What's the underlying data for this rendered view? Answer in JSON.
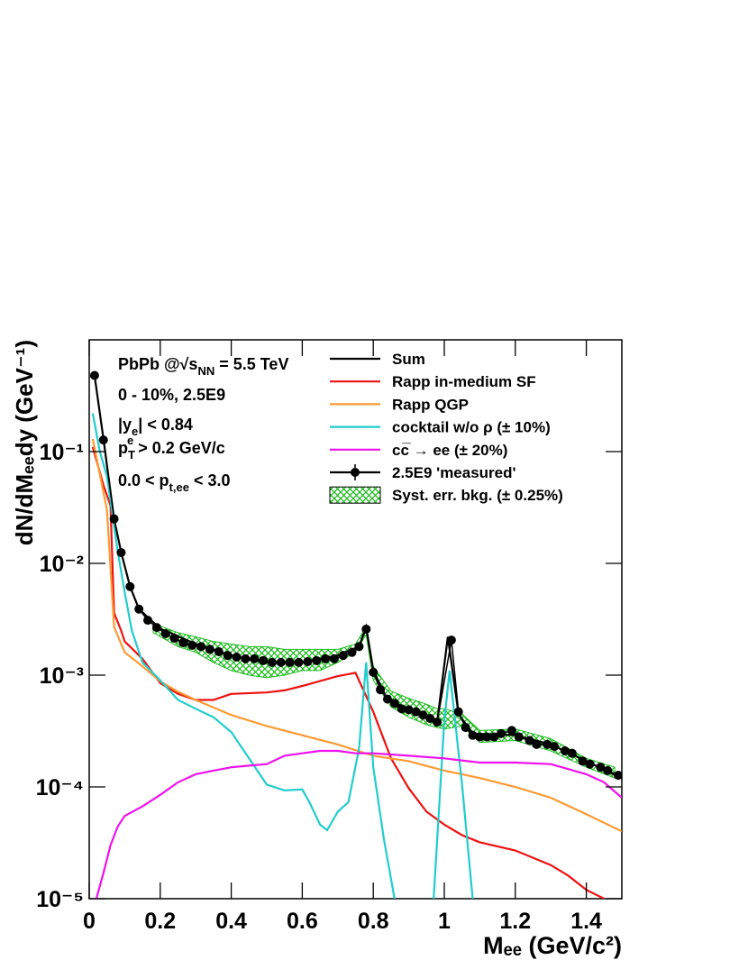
{
  "chart_data": {
    "type": "line",
    "xlabel": "Mₑₑ (GeV/c²)",
    "ylabel": "dN/dMₑₑdy (GeV⁻¹)",
    "xlim": [
      0,
      1.5
    ],
    "ylim": [
      1e-05,
      1
    ],
    "ylog": true,
    "xticks": [
      0,
      0.2,
      0.4,
      0.6,
      0.8,
      1,
      1.2,
      1.4
    ],
    "yticks": [
      {
        "value": 1e-05,
        "label": "10⁻⁵"
      },
      {
        "value": 0.0001,
        "label": "10⁻⁴"
      },
      {
        "value": 0.001,
        "label": "10⁻³"
      },
      {
        "value": 0.01,
        "label": "10⁻²"
      },
      {
        "value": 0.1,
        "label": "10⁻¹"
      }
    ],
    "annotations": [
      [
        {
          "t": "PbPb @√s"
        },
        {
          "t": "NN",
          "sub": true
        },
        {
          "t": " = 5.5 TeV"
        }
      ],
      [
        {
          "t": "0 - 10%, 2.5E9"
        }
      ],
      [
        {
          "t": "|y"
        },
        {
          "t": "e",
          "sub": true
        },
        {
          "t": "| < 0.84"
        }
      ],
      [
        {
          "t": "p"
        },
        {
          "t": "T",
          "sub": true
        },
        {
          "t": "e",
          "sup": true
        },
        {
          "t": " > 0.2 GeV/c"
        }
      ],
      [
        {
          "t": "0.0 < p"
        },
        {
          "t": "t,ee",
          "sub": true
        },
        {
          "t": " < 3.0"
        }
      ]
    ],
    "series": [
      {
        "name": "Sum",
        "kind": "line",
        "color": "#000000",
        "x": [
          0.015,
          0.04,
          0.07,
          0.09,
          0.115,
          0.14,
          0.2,
          0.3,
          0.4,
          0.5,
          0.6,
          0.7,
          0.76,
          0.78,
          0.8,
          0.84,
          0.9,
          0.98,
          1.01,
          1.04,
          1.08,
          1.2,
          1.3,
          1.4,
          1.5
        ],
        "values": [
          0.48,
          0.13,
          0.025,
          0.0125,
          0.0062,
          0.0039,
          0.0026,
          0.0019,
          0.0015,
          0.0013,
          0.0013,
          0.0015,
          0.0018,
          0.0027,
          0.0011,
          0.0006,
          0.0005,
          0.00038,
          0.0022,
          0.00045,
          0.0003,
          0.00029,
          0.00024,
          0.00017,
          0.00012
        ]
      },
      {
        "name": "Rapp in-medium SF",
        "kind": "line",
        "color": "#ee1111",
        "x": [
          0.01,
          0.04,
          0.06,
          0.07,
          0.09,
          0.1,
          0.15,
          0.2,
          0.25,
          0.3,
          0.35,
          0.4,
          0.5,
          0.55,
          0.6,
          0.7,
          0.75,
          0.8,
          0.85,
          0.9,
          0.95,
          1.0,
          1.05,
          1.1,
          1.2,
          1.3,
          1.35,
          1.4,
          1.45
        ],
        "values": [
          0.11,
          0.05,
          0.033,
          0.0036,
          0.0025,
          0.002,
          0.0014,
          0.00085,
          0.00068,
          0.0006,
          0.0006,
          0.00068,
          0.0007,
          0.00073,
          0.0008,
          0.00098,
          0.00105,
          0.00047,
          0.00018,
          9.7e-05,
          6e-05,
          4.6e-05,
          3.7e-05,
          3.2e-05,
          2.7e-05,
          2e-05,
          1.6e-05,
          1.2e-05,
          1e-05
        ]
      },
      {
        "name": "Rapp QGP",
        "kind": "line",
        "color": "#ff9933",
        "x": [
          0.01,
          0.05,
          0.07,
          0.1,
          0.15,
          0.2,
          0.25,
          0.3,
          0.4,
          0.5,
          0.6,
          0.7,
          0.8,
          0.9,
          1.0,
          1.1,
          1.2,
          1.3,
          1.4,
          1.5
        ],
        "values": [
          0.13,
          0.03,
          0.0027,
          0.0016,
          0.0012,
          0.00088,
          0.00071,
          0.0006,
          0.00044,
          0.00035,
          0.00029,
          0.00024,
          0.00019,
          0.00017,
          0.00014,
          0.00012,
          0.0001,
          8e-05,
          5.7e-05,
          4e-05
        ]
      },
      {
        "name": "cocktail w/o ρ (± 10%)",
        "kind": "line",
        "color": "#22cccc",
        "x": [
          0.01,
          0.03,
          0.05,
          0.08,
          0.1,
          0.12,
          0.15,
          0.2,
          0.25,
          0.3,
          0.35,
          0.4,
          0.45,
          0.5,
          0.55,
          0.6,
          0.62,
          0.65,
          0.67,
          0.7,
          0.73,
          0.76,
          0.78,
          0.8,
          0.83,
          0.86,
          0.9,
          0.97,
          1.0,
          1.015,
          1.05,
          1.08
        ],
        "values": [
          0.22,
          0.1,
          0.06,
          0.013,
          0.0055,
          0.0025,
          0.0013,
          0.0009,
          0.0006,
          0.0005,
          0.00042,
          0.00031,
          0.00018,
          0.000105,
          9.3e-05,
          9.5e-05,
          7.3e-05,
          4.6e-05,
          4.1e-05,
          6e-05,
          7.3e-05,
          0.00022,
          0.0013,
          0.00015,
          3.4e-05,
          1e-05,
          null,
          1e-05,
          0.00039,
          0.0011,
          0.000105,
          1e-05
        ]
      },
      {
        "name": "cc̅ → ee (± 20%)",
        "kind": "line",
        "color": "#ee11ee",
        "x": [
          0.02,
          0.04,
          0.06,
          0.08,
          0.1,
          0.15,
          0.2,
          0.25,
          0.3,
          0.35,
          0.4,
          0.45,
          0.5,
          0.55,
          0.6,
          0.65,
          0.7,
          0.75,
          0.8,
          0.9,
          1.0,
          1.1,
          1.2,
          1.3,
          1.4,
          1.45,
          1.5
        ],
        "values": [
          1e-05,
          1.7e-05,
          3e-05,
          4.4e-05,
          5.5e-05,
          6.7e-05,
          8.5e-05,
          0.00011,
          0.00013,
          0.00014,
          0.00015,
          0.000155,
          0.00016,
          0.00019,
          0.0002,
          0.00021,
          0.00021,
          0.0002,
          0.0002,
          0.00019,
          0.00018,
          0.000165,
          0.000165,
          0.00016,
          0.00013,
          0.00011,
          8e-05
        ]
      },
      {
        "name": "2.5E9 'measured'",
        "kind": "points",
        "color": "#000000",
        "x": [
          0.015,
          0.04,
          0.07,
          0.09,
          0.115,
          0.14,
          0.165,
          0.19,
          0.215,
          0.24,
          0.265,
          0.29,
          0.315,
          0.34,
          0.365,
          0.39,
          0.415,
          0.44,
          0.465,
          0.49,
          0.515,
          0.54,
          0.565,
          0.59,
          0.615,
          0.64,
          0.665,
          0.69,
          0.715,
          0.74,
          0.76,
          0.78,
          0.8,
          0.82,
          0.84,
          0.86,
          0.88,
          0.9,
          0.92,
          0.94,
          0.96,
          0.98,
          1.02,
          1.04,
          1.06,
          1.08,
          1.1,
          1.12,
          1.14,
          1.16,
          1.19,
          1.21,
          1.24,
          1.26,
          1.29,
          1.31,
          1.34,
          1.36,
          1.39,
          1.41,
          1.44,
          1.46,
          1.49
        ],
        "values": [
          0.48,
          0.127,
          0.025,
          0.0125,
          0.0062,
          0.0039,
          0.0031,
          0.00267,
          0.00235,
          0.00214,
          0.00195,
          0.00185,
          0.0018,
          0.0017,
          0.00162,
          0.0015,
          0.00145,
          0.0014,
          0.0014,
          0.00135,
          0.0013,
          0.0013,
          0.0013,
          0.0013,
          0.00132,
          0.00135,
          0.0014,
          0.0014,
          0.0015,
          0.0016,
          0.0018,
          0.00258,
          0.00106,
          0.00074,
          0.00061,
          0.00056,
          0.0005,
          0.00049,
          0.00047,
          0.00044,
          0.00041,
          0.00038,
          0.00206,
          0.00047,
          0.00034,
          0.00029,
          0.00028,
          0.00028,
          0.00028,
          0.0003,
          0.00032,
          0.00028,
          0.00026,
          0.00024,
          0.00024,
          0.00023,
          0.00021,
          0.0002,
          0.00017,
          0.00016,
          0.00015,
          0.00014,
          0.000127
        ]
      },
      {
        "name": "Syst. err. bkg. (± 0.25%)",
        "kind": "band",
        "color": "#22bb22",
        "x": [
          0.18,
          0.25,
          0.3,
          0.35,
          0.4,
          0.45,
          0.5,
          0.55,
          0.6,
          0.65,
          0.7,
          0.75,
          0.78,
          0.8,
          0.85,
          0.9,
          0.95,
          0.98,
          1.0,
          1.05,
          1.1,
          1.2,
          1.3,
          1.4,
          1.48
        ],
        "upper": [
          0.0029,
          0.0024,
          0.0022,
          0.002,
          0.0019,
          0.0018,
          0.0018,
          0.0017,
          0.0017,
          0.0017,
          0.0017,
          0.0019,
          0.0027,
          0.0012,
          0.00072,
          0.00062,
          0.00055,
          0.0005,
          0.0005,
          0.00045,
          0.00032,
          0.00033,
          0.00027,
          0.00018,
          0.00015
        ],
        "lower": [
          0.0024,
          0.0018,
          0.0016,
          0.0013,
          0.0011,
          0.001,
          0.00095,
          0.001,
          0.0011,
          0.0011,
          0.0013,
          0.0016,
          0.0023,
          0.0009,
          0.00052,
          0.00042,
          0.00036,
          0.00034,
          0.00033,
          0.00035,
          0.00025,
          0.00026,
          0.00021,
          0.00015,
          0.00012
        ]
      }
    ]
  }
}
